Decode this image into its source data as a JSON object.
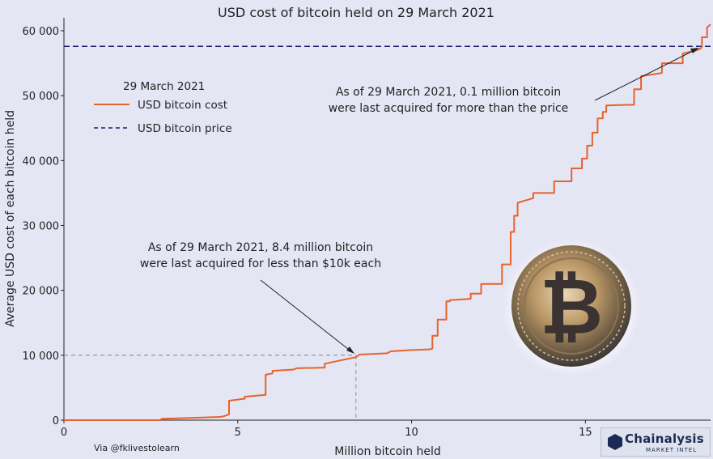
{
  "chart_data": {
    "type": "line",
    "title": "USD cost of bitcoin held on 29 March 2021",
    "xlabel": "Million bitcoin held",
    "ylabel": "Average USD cost of each bitcoin held",
    "xlim": [
      0,
      18.6
    ],
    "ylim": [
      0,
      61000
    ],
    "x_ticks": [
      0,
      5,
      10,
      15
    ],
    "x_tick_labels": [
      "0",
      "5",
      "10",
      "15"
    ],
    "y_ticks": [
      0,
      10000,
      20000,
      30000,
      40000,
      50000,
      60000
    ],
    "y_tick_labels": [
      "0",
      "10 000",
      "20 000",
      "30 000",
      "40 000",
      "50 000",
      "60 000"
    ],
    "legend": {
      "title": "29 March 2021",
      "position": "top-left",
      "entries": [
        "USD bitcoin cost",
        "USD bitcoin price"
      ]
    },
    "series": [
      {
        "name": "USD bitcoin cost",
        "color": "#e8622a",
        "style": "step",
        "x": [
          0,
          2.8,
          2.8,
          4.0,
          4.5,
          4.6,
          4.75,
          4.75,
          5.2,
          5.2,
          5.8,
          5.8,
          6.0,
          6.0,
          6.6,
          6.7,
          7.5,
          7.5,
          8.4,
          8.5,
          9.3,
          9.4,
          10.0,
          10.5,
          10.6,
          10.6,
          10.75,
          10.75,
          11.0,
          11.0,
          11.1,
          11.1,
          11.7,
          11.7,
          12.0,
          12.0,
          12.6,
          12.6,
          12.85,
          12.85,
          12.95,
          12.95,
          13.05,
          13.05,
          13.5,
          13.5,
          14.1,
          14.1,
          14.6,
          14.6,
          14.9,
          14.9,
          15.05,
          15.05,
          15.2,
          15.2,
          15.35,
          15.35,
          15.5,
          15.5,
          15.6,
          15.6,
          16.4,
          16.4,
          16.6,
          16.6,
          17.2,
          17.2,
          17.8,
          17.8,
          18.2,
          18.3,
          18.35,
          18.35,
          18.5,
          18.5,
          18.6
        ],
        "y": [
          0,
          0,
          200,
          400,
          500,
          600,
          900,
          3000,
          3300,
          3600,
          3900,
          7000,
          7200,
          7600,
          7800,
          8000,
          8100,
          8700,
          9700,
          10100,
          10300,
          10600,
          10800,
          10900,
          11000,
          13000,
          13000,
          15500,
          15500,
          18300,
          18300,
          18500,
          18700,
          19500,
          19500,
          21000,
          21000,
          24000,
          24000,
          29000,
          29000,
          31500,
          31500,
          33500,
          34200,
          35000,
          35000,
          36800,
          36800,
          38800,
          38800,
          40300,
          40300,
          42300,
          42300,
          44300,
          44300,
          46500,
          46500,
          47500,
          47500,
          48500,
          48600,
          51000,
          51000,
          53000,
          53500,
          55000,
          55000,
          56500,
          57000,
          57200,
          57500,
          59000,
          59000,
          60500,
          61000
        ]
      },
      {
        "name": "USD bitcoin price",
        "color": "#1f1f6e",
        "style": "dashed",
        "value": 57600
      }
    ],
    "reference_lines": [
      {
        "x": 8.4,
        "y": 10000,
        "style": "dashed",
        "color": "#777777"
      }
    ],
    "annotations": [
      {
        "lines": [
          "As of 29 March 2021, 8.4 million bitcoin",
          "were last acquired for less than $10k each"
        ],
        "arrow_to": {
          "x": 8.4,
          "y": 10000
        }
      },
      {
        "lines": [
          "As of 29 March 2021, 0.1 million bitcoin",
          "were last acquired for more than the price"
        ],
        "arrow_to": {
          "x": 18.5,
          "y": 57600
        }
      }
    ]
  },
  "credit": "Via @fklivestolearn",
  "logo": {
    "name": "Chainalysis",
    "sub": "MARKET INTEL"
  }
}
